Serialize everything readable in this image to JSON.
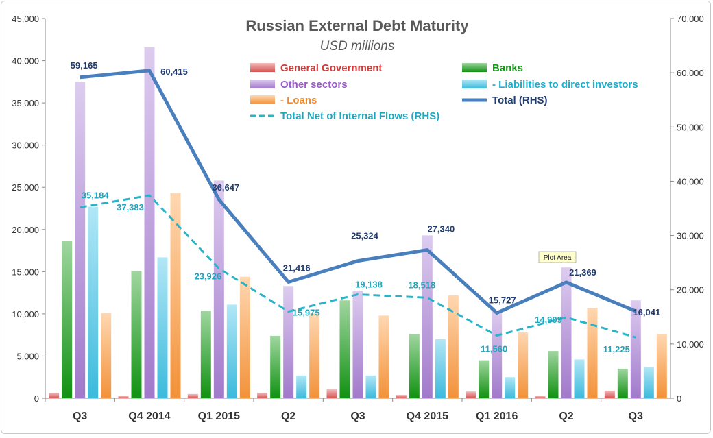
{
  "chart_data": {
    "type": "bar",
    "title": "Russian External Debt Maturity",
    "subtitle": "USD millions",
    "categories": [
      "Q3",
      "Q4 2014",
      "Q1 2015",
      "Q2",
      "Q3",
      "Q4 2015",
      "Q1 2016",
      "Q2",
      "Q3"
    ],
    "y_left": {
      "min": 0,
      "max": 45000,
      "ticks": [
        "0",
        "5,000",
        "10,000",
        "15,000",
        "20,000",
        "25,000",
        "30,000",
        "35,000",
        "40,000",
        "45,000"
      ]
    },
    "y_right": {
      "min": 0,
      "max": 70000,
      "ticks": [
        "0",
        "10,000",
        "20,000",
        "30,000",
        "40,000",
        "50,000",
        "60,000",
        "70,000"
      ]
    },
    "grid": false,
    "legend_position": "top-center",
    "bar_series": [
      {
        "name": "General Government",
        "color": "#e05555",
        "values": [
          650,
          250,
          500,
          650,
          1050,
          400,
          800,
          250,
          900
        ]
      },
      {
        "name": "Banks",
        "color": "#119911",
        "values": [
          18600,
          15100,
          10400,
          7400,
          11600,
          7600,
          4500,
          5600,
          3500
        ]
      },
      {
        "name": "Other sectors",
        "color": "#a97fd6",
        "values": [
          37500,
          41600,
          25800,
          13300,
          12700,
          19300,
          10400,
          15500,
          11600
        ]
      },
      {
        "name": " - Liabilities to direct investors",
        "color": "#3fc4e8",
        "values": [
          22700,
          16700,
          11100,
          2700,
          2700,
          7000,
          2500,
          4600,
          3700
        ]
      },
      {
        "name": " - Loans",
        "color": "#ff9a3c",
        "values": [
          10100,
          24300,
          14400,
          10100,
          9800,
          12200,
          7800,
          10700,
          7600
        ]
      }
    ],
    "line_series": [
      {
        "name": "Total (RHS)",
        "color": "#4a7fbd",
        "dashed": false,
        "axis": "right",
        "values": [
          59165,
          60415,
          36647,
          21416,
          25324,
          27340,
          15727,
          21369,
          16041
        ],
        "labels": [
          "59,165",
          "60,415",
          "36,647",
          "21,416",
          "25,324",
          "27,340",
          "15,727",
          "21,369",
          "16,041"
        ]
      },
      {
        "name": "Total Net of Internal Flows (RHS)",
        "color": "#2ab3c9",
        "dashed": true,
        "axis": "right",
        "values": [
          35184,
          37383,
          23926,
          15975,
          19138,
          18518,
          11560,
          14909,
          11225
        ],
        "labels": [
          "35,184",
          "37,383",
          "23,926",
          "15,975",
          "19,138",
          "18,518",
          "11,560",
          "14,909",
          "11,225"
        ]
      }
    ],
    "tooltip": "Plot Area"
  }
}
